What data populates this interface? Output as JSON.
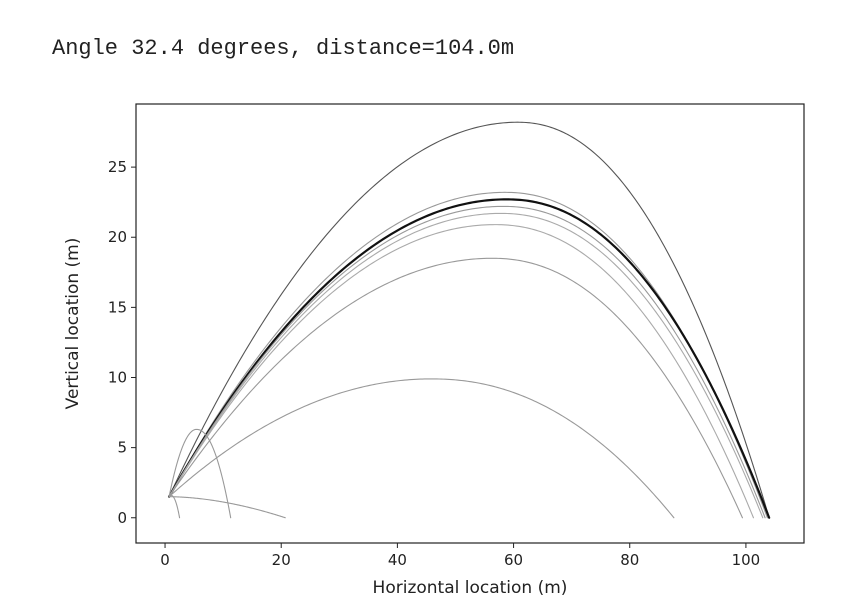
{
  "output_text": "Angle 32.4 degrees, distance=104.0m",
  "chart_data": {
    "type": "line",
    "xlabel": "Horizontal location (m)",
    "ylabel": "Vertical location (m)",
    "xlim": [
      -5,
      110
    ],
    "ylim": [
      -1.8,
      29.5
    ],
    "xticks": [
      0,
      20,
      40,
      60,
      80,
      100
    ],
    "yticks": [
      0,
      5,
      10,
      15,
      20,
      25
    ],
    "grid": false,
    "legend": "none",
    "line_color": "#555555",
    "series": [
      {
        "x0": 0.7,
        "y0": 1.5,
        "range": 103.3,
        "apex_x": 60.7,
        "apex_y": 28.2,
        "color": "#555555",
        "width": 1.1,
        "peak": "high"
      },
      {
        "x0": 0.7,
        "y0": 1.5,
        "range": 103.0,
        "apex_x": 58.5,
        "apex_y": 23.2,
        "color": "#999999",
        "width": 1.1
      },
      {
        "x0": 0.7,
        "y0": 1.5,
        "range": 103.3,
        "apex_x": 58.8,
        "apex_y": 22.7,
        "color": "#111111",
        "width": 2.2,
        "best": true
      },
      {
        "x0": 0.7,
        "y0": 1.5,
        "range": 102.6,
        "apex_x": 58.2,
        "apex_y": 22.2,
        "color": "#999999",
        "width": 1.1
      },
      {
        "x0": 0.7,
        "y0": 1.5,
        "range": 102.2,
        "apex_x": 57.8,
        "apex_y": 21.7,
        "color": "#aaaaaa",
        "width": 1.1
      },
      {
        "x0": 0.7,
        "y0": 1.5,
        "range": 100.6,
        "apex_x": 56.8,
        "apex_y": 20.9,
        "color": "#aaaaaa",
        "width": 1.1
      },
      {
        "x0": 0.7,
        "y0": 1.5,
        "range": 98.7,
        "apex_x": 56.3,
        "apex_y": 18.5,
        "color": "#999999",
        "width": 1.1
      },
      {
        "x0": 0.7,
        "y0": 1.5,
        "range": 86.9,
        "apex_x": 45.8,
        "apex_y": 9.9,
        "color": "#999999",
        "width": 1.1
      },
      {
        "x0": 0.7,
        "y0": 1.5,
        "range": 10.6,
        "apex_x": 5.4,
        "apex_y": 6.3,
        "color": "#999999",
        "width": 1.1
      },
      {
        "x0": 0.7,
        "y0": 1.5,
        "range": 1.8,
        "apex_x": 1.0,
        "apex_y": 1.6,
        "color": "#999999",
        "width": 1.1
      },
      {
        "x0": 0.7,
        "y0": 1.5,
        "range": 20.0,
        "apex_x": 0.7,
        "apex_y": 1.5,
        "color": "#999999",
        "width": 1.1
      }
    ]
  }
}
